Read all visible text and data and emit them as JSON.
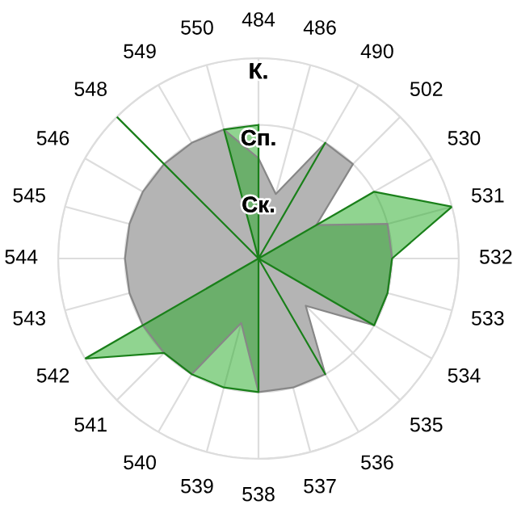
{
  "chart_data": {
    "type": "radar",
    "categories": [
      "484",
      "486",
      "490",
      "502",
      "530",
      "531",
      "532",
      "533",
      "534",
      "535",
      "536",
      "537",
      "538",
      "539",
      "540",
      "541",
      "542",
      "543",
      "544",
      "545",
      "546",
      "548",
      "549",
      "550"
    ],
    "series": [
      {
        "type": "area",
        "color": "#b4b4b4",
        "values": [
          1.5,
          1.0,
          2.0,
          2.0,
          1.0,
          2.0,
          2.0,
          2.0,
          2.0,
          1.0,
          2.0,
          2.0,
          2.0,
          1.0,
          2.0,
          2.0,
          2.0,
          2.0,
          2.0,
          2.0,
          2.0,
          2.0,
          2.0,
          2.0
        ]
      },
      {
        "type": "area",
        "color": "#22aa22",
        "values": [
          2.0,
          0,
          2.0,
          0,
          2.0,
          3.0,
          2.0,
          2.0,
          2.0,
          0,
          2.0,
          0,
          2.0,
          2.0,
          2.0,
          2.0,
          3.0,
          0,
          0,
          0,
          0,
          3.0,
          0,
          2.0
        ]
      }
    ],
    "ylim": [
      0,
      3
    ],
    "yticks": [
      {
        "value": 1,
        "label": "Ск."
      },
      {
        "value": 2,
        "label": "Сп."
      },
      {
        "value": 3,
        "label": "К."
      }
    ],
    "grid": true
  }
}
